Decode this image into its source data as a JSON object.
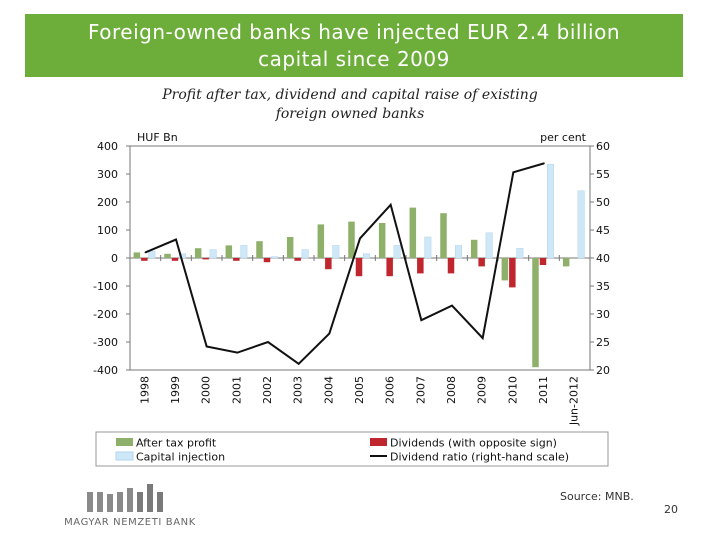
{
  "header": {
    "title_line1": "Foreign-owned banks have injected EUR 2.4 billion",
    "title_line2": "capital since 2009"
  },
  "subtitle": {
    "line1": "Profit after tax, dividend and capital raise of existing",
    "line2": "foreign owned banks"
  },
  "chart_data": {
    "type": "bar",
    "categories": [
      "1998",
      "1999",
      "2000",
      "2001",
      "2002",
      "2003",
      "2004",
      "2005",
      "2006",
      "2007",
      "2008",
      "2009",
      "2010",
      "2011",
      "Jun-2012"
    ],
    "left_axis": {
      "unit": "HUF Bn",
      "range": [
        -400,
        400
      ],
      "ticks": [
        400,
        300,
        200,
        100,
        0,
        -100,
        -200,
        -300,
        -400
      ]
    },
    "right_axis": {
      "unit": "per cent",
      "range": [
        20,
        60
      ],
      "ticks": [
        60,
        55,
        50,
        45,
        40,
        35,
        30,
        25,
        20
      ]
    },
    "series": [
      {
        "name": "After tax profit",
        "type": "bar",
        "axis": "left",
        "color": "#8fb06a",
        "values": [
          20,
          15,
          35,
          45,
          60,
          75,
          120,
          130,
          125,
          180,
          160,
          65,
          -80,
          -390,
          -30
        ]
      },
      {
        "name": "Dividends (with opposite sign)",
        "type": "bar",
        "axis": "left",
        "color": "#c0262d",
        "values": [
          -10,
          -10,
          -5,
          -10,
          -15,
          -10,
          -40,
          -65,
          -65,
          -55,
          -55,
          -30,
          -105,
          -25,
          0
        ]
      },
      {
        "name": "Capital injection",
        "type": "bar",
        "axis": "left",
        "color": "#cfe8f7",
        "values": [
          25,
          15,
          30,
          45,
          5,
          30,
          45,
          15,
          45,
          75,
          45,
          90,
          35,
          335,
          240
        ]
      },
      {
        "name": "Dividend ratio (right-hand scale)",
        "type": "line",
        "axis": "right",
        "color": "#111111",
        "values": [
          41,
          43.3,
          24.2,
          23.1,
          25,
          21.1,
          26.5,
          43.5,
          49.5,
          28.9,
          31.5,
          25.7,
          55.3,
          56.9,
          null
        ]
      }
    ],
    "legend_position": "bottom",
    "grid": false
  },
  "footer": {
    "source": "Source: MNB.",
    "page_number": "20",
    "logo_text": "MAGYAR NEMZETI BANK"
  }
}
